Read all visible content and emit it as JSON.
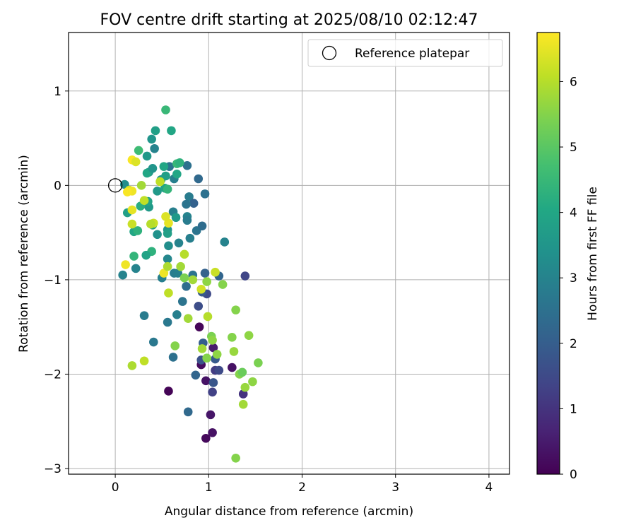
{
  "chart_data": {
    "type": "scatter",
    "title": "FOV centre drift starting at 2025/08/10 02:12:47",
    "xlabel": "Angular distance from reference (arcmin)",
    "ylabel": "Rotation from reference (arcmin)",
    "xlim": [
      -0.5,
      4.22
    ],
    "ylim": [
      -3.06,
      1.62
    ],
    "xticks": [
      0,
      1,
      2,
      3,
      4
    ],
    "yticks": [
      -3,
      -2,
      -1,
      0,
      1
    ],
    "xtick_labels": [
      "0",
      "1",
      "2",
      "3",
      "4"
    ],
    "ytick_labels": [
      "−3",
      "−2",
      "−1",
      "0",
      "1"
    ],
    "grid": true,
    "legend_position": "top-right",
    "legend": {
      "label": "Reference platepar",
      "marker": "open-circle"
    },
    "reference_point": {
      "x": 0,
      "y": 0
    },
    "colorbar": {
      "label": "Hours from first FF file",
      "colormap": "viridis",
      "min": 0,
      "max": 6.75,
      "ticks": [
        0,
        1,
        2,
        3,
        4,
        5,
        6
      ],
      "tick_labels": [
        "0",
        "1",
        "2",
        "3",
        "4",
        "5",
        "6"
      ]
    },
    "series": [
      {
        "points": [
          {
            "x": 0.57,
            "y": -2.18,
            "c": 0.05
          },
          {
            "x": 0.9,
            "y": -1.5,
            "c": 0.1
          },
          {
            "x": 0.97,
            "y": -2.68,
            "c": 0.15
          },
          {
            "x": 1.04,
            "y": -2.62,
            "c": 0.3
          },
          {
            "x": 1.02,
            "y": -2.43,
            "c": 0.4
          },
          {
            "x": 0.92,
            "y": -1.9,
            "c": 0.2
          },
          {
            "x": 0.97,
            "y": -2.07,
            "c": 0.35
          },
          {
            "x": 1.25,
            "y": -1.93,
            "c": 0.3
          },
          {
            "x": 1.05,
            "y": -1.72,
            "c": 0.5
          },
          {
            "x": 1.37,
            "y": -2.21,
            "c": 1.0
          },
          {
            "x": 1.04,
            "y": -2.19,
            "c": 1.3
          },
          {
            "x": 1.05,
            "y": -2.09,
            "c": 1.8
          },
          {
            "x": 1.07,
            "y": -1.96,
            "c": 1.2
          },
          {
            "x": 1.11,
            "y": -1.96,
            "c": 1.5
          },
          {
            "x": 1.07,
            "y": -1.84,
            "c": 1.9
          },
          {
            "x": 0.92,
            "y": -1.85,
            "c": 1.7
          },
          {
            "x": 0.94,
            "y": -1.67,
            "c": 2.0
          },
          {
            "x": 0.86,
            "y": -2.01,
            "c": 2.2
          },
          {
            "x": 0.78,
            "y": -2.4,
            "c": 2.3
          },
          {
            "x": 0.62,
            "y": -1.82,
            "c": 2.5
          },
          {
            "x": 1.39,
            "y": -0.96,
            "c": 1.4
          },
          {
            "x": 0.89,
            "y": -1.28,
            "c": 1.6
          },
          {
            "x": 0.98,
            "y": -1.15,
            "c": 1.5
          },
          {
            "x": 0.93,
            "y": -1.13,
            "c": 1.9
          },
          {
            "x": 0.96,
            "y": -0.93,
            "c": 2.1
          },
          {
            "x": 1.11,
            "y": -0.96,
            "c": 2.2
          },
          {
            "x": 0.76,
            "y": -1.07,
            "c": 2.4
          },
          {
            "x": 0.72,
            "y": -1.23,
            "c": 2.6
          },
          {
            "x": 0.66,
            "y": -1.37,
            "c": 2.9
          },
          {
            "x": 0.56,
            "y": -1.45,
            "c": 2.7
          },
          {
            "x": 0.31,
            "y": -1.38,
            "c": 2.8
          },
          {
            "x": 0.41,
            "y": -1.66,
            "c": 2.7
          },
          {
            "x": 0.63,
            "y": -0.93,
            "c": 2.8
          },
          {
            "x": 0.5,
            "y": -0.98,
            "c": 2.9
          },
          {
            "x": 0.83,
            "y": -0.95,
            "c": 2.6
          },
          {
            "x": 0.67,
            "y": -0.93,
            "c": 2.9
          },
          {
            "x": 0.89,
            "y": 0.07,
            "c": 2.3
          },
          {
            "x": 0.96,
            "y": -0.09,
            "c": 2.5
          },
          {
            "x": 0.79,
            "y": -0.12,
            "c": 2.8
          },
          {
            "x": 0.84,
            "y": -0.19,
            "c": 2.1
          },
          {
            "x": 0.76,
            "y": -0.2,
            "c": 2.6
          },
          {
            "x": 0.62,
            "y": -0.28,
            "c": 2.9
          },
          {
            "x": 0.77,
            "y": -0.33,
            "c": 3.0
          },
          {
            "x": 0.77,
            "y": -0.37,
            "c": 2.8
          },
          {
            "x": 0.87,
            "y": -0.48,
            "c": 2.6
          },
          {
            "x": 0.93,
            "y": -0.43,
            "c": 2.4
          },
          {
            "x": 0.8,
            "y": -0.56,
            "c": 2.9
          },
          {
            "x": 0.68,
            "y": -0.61,
            "c": 3.0
          },
          {
            "x": 1.17,
            "y": -0.6,
            "c": 3.0
          },
          {
            "x": 0.77,
            "y": 0.21,
            "c": 2.5
          },
          {
            "x": 0.58,
            "y": 0.2,
            "c": 2.6
          },
          {
            "x": 0.63,
            "y": 0.07,
            "c": 2.9
          },
          {
            "x": 0.42,
            "y": 0.39,
            "c": 3.0
          },
          {
            "x": 0.39,
            "y": 0.49,
            "c": 3.5
          },
          {
            "x": 0.34,
            "y": 0.31,
            "c": 3.6
          },
          {
            "x": 0.43,
            "y": 0.58,
            "c": 3.8
          },
          {
            "x": 0.6,
            "y": 0.58,
            "c": 4.0
          },
          {
            "x": 0.1,
            "y": 0.01,
            "c": 3.3
          },
          {
            "x": 0.08,
            "y": -0.95,
            "c": 3.0
          },
          {
            "x": 0.22,
            "y": -0.88,
            "c": 3.0
          },
          {
            "x": 0.56,
            "y": -0.78,
            "c": 3.1
          },
          {
            "x": 0.57,
            "y": -0.64,
            "c": 3.3
          },
          {
            "x": 0.45,
            "y": -0.52,
            "c": 3.4
          },
          {
            "x": 0.56,
            "y": -0.47,
            "c": 3.5
          },
          {
            "x": 0.56,
            "y": -0.51,
            "c": 3.8
          },
          {
            "x": 0.4,
            "y": -0.42,
            "c": 3.7
          },
          {
            "x": 0.36,
            "y": -0.23,
            "c": 3.6
          },
          {
            "x": 0.35,
            "y": -0.17,
            "c": 3.9
          },
          {
            "x": 0.27,
            "y": -0.22,
            "c": 4.2
          },
          {
            "x": 0.13,
            "y": -0.29,
            "c": 3.8
          },
          {
            "x": 0.39,
            "y": -0.7,
            "c": 4.3
          },
          {
            "x": 0.33,
            "y": -0.74,
            "c": 3.9
          },
          {
            "x": 0.2,
            "y": -0.49,
            "c": 4.0
          },
          {
            "x": 0.24,
            "y": -0.48,
            "c": 4.3
          },
          {
            "x": 0.2,
            "y": -0.75,
            "c": 4.4
          },
          {
            "x": 0.45,
            "y": -0.06,
            "c": 3.6
          },
          {
            "x": 0.49,
            "y": 0.06,
            "c": 3.5
          },
          {
            "x": 0.54,
            "y": 0.1,
            "c": 3.8
          },
          {
            "x": 0.53,
            "y": -0.03,
            "c": 3.9
          },
          {
            "x": 0.56,
            "y": -0.04,
            "c": 4.4
          },
          {
            "x": 0.66,
            "y": 0.12,
            "c": 4.0
          },
          {
            "x": 0.65,
            "y": -0.34,
            "c": 3.6
          },
          {
            "x": 0.36,
            "y": 0.14,
            "c": 3.6
          },
          {
            "x": 0.34,
            "y": 0.13,
            "c": 4.0
          },
          {
            "x": 0.4,
            "y": 0.18,
            "c": 3.5
          },
          {
            "x": 0.52,
            "y": 0.2,
            "c": 4.0
          },
          {
            "x": 0.66,
            "y": 0.23,
            "c": 4.5
          },
          {
            "x": 0.69,
            "y": 0.24,
            "c": 4.3
          },
          {
            "x": 0.25,
            "y": 0.37,
            "c": 4.6
          },
          {
            "x": 0.54,
            "y": 0.8,
            "c": 4.5
          },
          {
            "x": 0.57,
            "y": -0.4,
            "c": 6.5
          },
          {
            "x": 0.54,
            "y": -0.33,
            "c": 6.4
          },
          {
            "x": 0.41,
            "y": -0.4,
            "c": 6.2
          },
          {
            "x": 0.38,
            "y": -0.41,
            "c": 6.0
          },
          {
            "x": 0.18,
            "y": -0.41,
            "c": 6.2
          },
          {
            "x": 0.18,
            "y": -0.26,
            "c": 6.5
          },
          {
            "x": 0.15,
            "y": -0.05,
            "c": 6.3
          },
          {
            "x": 0.18,
            "y": -0.06,
            "c": 6.6
          },
          {
            "x": 0.13,
            "y": -0.07,
            "c": 6.7
          },
          {
            "x": 0.31,
            "y": -0.16,
            "c": 6.1
          },
          {
            "x": 0.28,
            "y": 0.0,
            "c": 5.8
          },
          {
            "x": 0.48,
            "y": 0.04,
            "c": 6.1
          },
          {
            "x": 0.18,
            "y": 0.27,
            "c": 6.7
          },
          {
            "x": 0.22,
            "y": 0.25,
            "c": 6.4
          },
          {
            "x": 0.11,
            "y": -0.84,
            "c": 6.6
          },
          {
            "x": 0.52,
            "y": -0.93,
            "c": 6.6
          },
          {
            "x": 0.56,
            "y": -0.86,
            "c": 5.9
          },
          {
            "x": 0.74,
            "y": -0.73,
            "c": 6.0
          },
          {
            "x": 0.7,
            "y": -0.86,
            "c": 5.8
          },
          {
            "x": 0.74,
            "y": -0.98,
            "c": 5.4
          },
          {
            "x": 0.83,
            "y": -1.0,
            "c": 5.8
          },
          {
            "x": 0.57,
            "y": -1.14,
            "c": 6.1
          },
          {
            "x": 0.92,
            "y": -1.1,
            "c": 6.3
          },
          {
            "x": 0.98,
            "y": -1.02,
            "c": 5.6
          },
          {
            "x": 1.07,
            "y": -0.92,
            "c": 6.2
          },
          {
            "x": 1.15,
            "y": -1.05,
            "c": 5.5
          },
          {
            "x": 0.99,
            "y": -1.39,
            "c": 6.0
          },
          {
            "x": 0.78,
            "y": -1.41,
            "c": 5.8
          },
          {
            "x": 1.29,
            "y": -1.32,
            "c": 5.5
          },
          {
            "x": 1.03,
            "y": -1.6,
            "c": 5.4
          },
          {
            "x": 1.04,
            "y": -1.64,
            "c": 5.6
          },
          {
            "x": 0.93,
            "y": -1.73,
            "c": 5.8
          },
          {
            "x": 0.98,
            "y": -1.83,
            "c": 5.5
          },
          {
            "x": 1.09,
            "y": -1.79,
            "c": 5.6
          },
          {
            "x": 1.25,
            "y": -1.61,
            "c": 5.5
          },
          {
            "x": 1.43,
            "y": -1.59,
            "c": 5.6
          },
          {
            "x": 1.27,
            "y": -1.76,
            "c": 5.7
          },
          {
            "x": 1.33,
            "y": -2.0,
            "c": 5.5
          },
          {
            "x": 1.36,
            "y": -1.98,
            "c": 5.2
          },
          {
            "x": 1.39,
            "y": -2.14,
            "c": 5.7
          },
          {
            "x": 1.47,
            "y": -2.08,
            "c": 5.6
          },
          {
            "x": 1.53,
            "y": -1.88,
            "c": 5.4
          },
          {
            "x": 1.37,
            "y": -2.32,
            "c": 5.8
          },
          {
            "x": 1.29,
            "y": -2.89,
            "c": 5.5
          },
          {
            "x": 0.64,
            "y": -1.7,
            "c": 5.5
          },
          {
            "x": 0.31,
            "y": -1.86,
            "c": 6.1
          },
          {
            "x": 0.18,
            "y": -1.91,
            "c": 5.9
          }
        ]
      }
    ]
  },
  "colors": {
    "grid": "#b0b0b0",
    "axis": "#000000",
    "background": "#ffffff"
  }
}
